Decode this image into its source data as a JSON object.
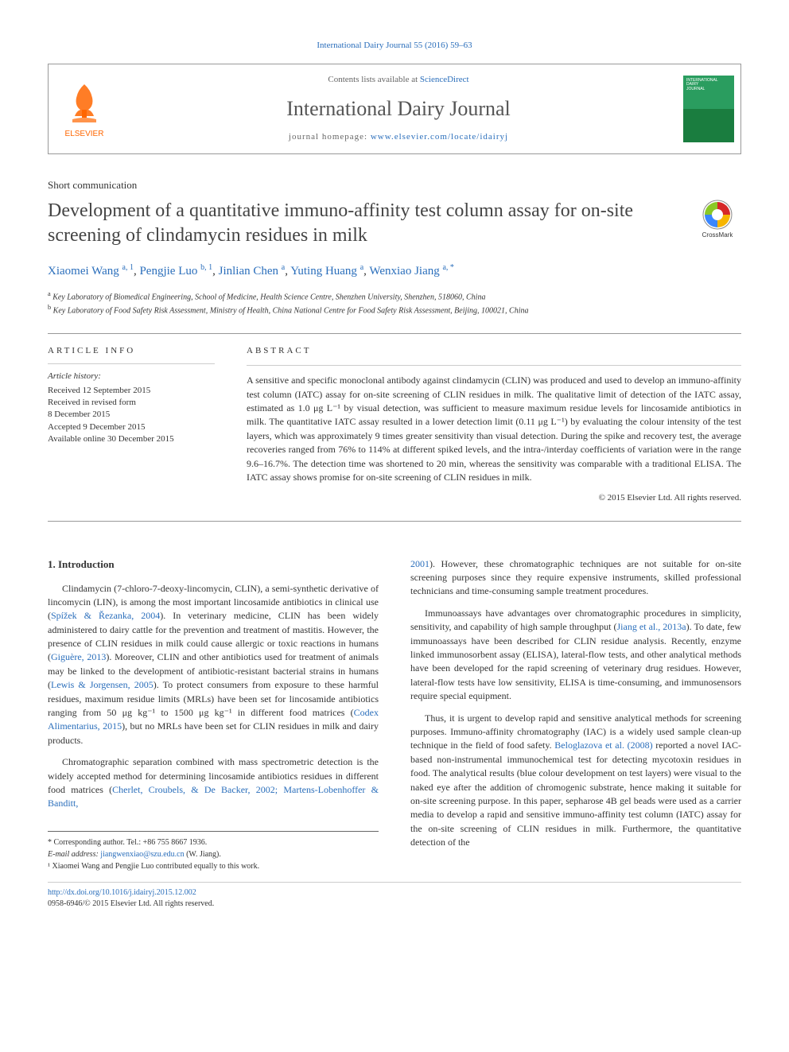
{
  "citation": "International Dairy Journal 55 (2016) 59–63",
  "header": {
    "contents_prefix": "Contents lists available at ",
    "contents_link": "ScienceDirect",
    "journal_title": "International Dairy Journal",
    "homepage_prefix": "journal homepage: ",
    "homepage_url": "www.elsevier.com/locate/idairyj",
    "publisher": "ELSEVIER",
    "cover_text1": "INTERNATIONAL",
    "cover_text2": "DAIRY",
    "cover_text3": "JOURNAL"
  },
  "article_type": "Short communication",
  "title": "Development of a quantitative immuno-affinity test column assay for on-site screening of clindamycin residues in milk",
  "crossmark_label": "CrossMark",
  "authors_html": "Xiaomei Wang",
  "authors": [
    {
      "name": "Xiaomei Wang",
      "aff": "a, 1"
    },
    {
      "name": "Pengjie Luo",
      "aff": "b, 1"
    },
    {
      "name": "Jinlian Chen",
      "aff": "a"
    },
    {
      "name": "Yuting Huang",
      "aff": "a"
    },
    {
      "name": "Wenxiao Jiang",
      "aff": "a, *"
    }
  ],
  "affiliations": {
    "a": "Key Laboratory of Biomedical Engineering, School of Medicine, Health Science Centre, Shenzhen University, Shenzhen, 518060, China",
    "b": "Key Laboratory of Food Safety Risk Assessment, Ministry of Health, China National Centre for Food Safety Risk Assessment, Beijing, 100021, China"
  },
  "article_info_hdr": "ARTICLE INFO",
  "abstract_hdr": "ABSTRACT",
  "history_hdr": "Article history:",
  "history": {
    "received": "Received 12 September 2015",
    "revised1": "Received in revised form",
    "revised2": "8 December 2015",
    "accepted": "Accepted 9 December 2015",
    "online": "Available online 30 December 2015"
  },
  "abstract": "A sensitive and specific monoclonal antibody against clindamycin (CLIN) was produced and used to develop an immuno-affinity test column (IATC) assay for on-site screening of CLIN residues in milk. The qualitative limit of detection of the IATC assay, estimated as 1.0 μg L⁻¹ by visual detection, was sufficient to measure maximum residue levels for lincosamide antibiotics in milk. The quantitative IATC assay resulted in a lower detection limit (0.11 μg L⁻¹) by evaluating the colour intensity of the test layers, which was approximately 9 times greater sensitivity than visual detection. During the spike and recovery test, the average recoveries ranged from 76% to 114% at different spiked levels, and the intra-/interday coefficients of variation were in the range 9.6–16.7%. The detection time was shortened to 20 min, whereas the sensitivity was comparable with a traditional ELISA. The IATC assay shows promise for on-site screening of CLIN residues in milk.",
  "copyright": "© 2015 Elsevier Ltd. All rights reserved.",
  "intro_heading": "1. Introduction",
  "intro_p1_a": "Clindamycin (7-chloro-7-deoxy-lincomycin, CLIN), a semi-synthetic derivative of lincomycin (LIN), is among the most important lincosamide antibiotics in clinical use (",
  "intro_p1_ref1": "Spížek & Řezanka, 2004",
  "intro_p1_b": "). In veterinary medicine, CLIN has been widely administered to dairy cattle for the prevention and treatment of mastitis. However, the presence of CLIN residues in milk could cause allergic or toxic reactions in humans (",
  "intro_p1_ref2": "Giguère, 2013",
  "intro_p1_c": "). Moreover, CLIN and other antibiotics used for treatment of animals may be linked to the development of antibiotic-resistant bacterial strains in humans (",
  "intro_p1_ref3": "Lewis & Jorgensen, 2005",
  "intro_p1_d": "). To protect consumers from exposure to these harmful residues, maximum residue limits (MRLs) have been set for lincosamide antibiotics ranging from 50 μg kg⁻¹ to 1500 μg kg⁻¹ in different food matrices (",
  "intro_p1_ref4": "Codex Alimentarius, 2015",
  "intro_p1_e": "), but no MRLs have been set for CLIN residues in milk and dairy products.",
  "intro_p2_a": "Chromatographic separation combined with mass spectrometric detection is the widely accepted method for determining lincosamide antibiotics residues in different food matrices (",
  "intro_p2_ref1": "Cherlet, Croubels, & De Backer, 2002; Martens-Lobenhoffer & Banditt,",
  "intro_p3_ref1": "2001",
  "intro_p3_a": "). However, these chromatographic techniques are not suitable for on-site screening purposes since they require expensive instruments, skilled professional technicians and time-consuming sample treatment procedures.",
  "intro_p4_a": "Immunoassays have advantages over chromatographic procedures in simplicity, sensitivity, and capability of high sample throughput (",
  "intro_p4_ref1": "Jiang et al., 2013a",
  "intro_p4_b": "). To date, few immunoassays have been described for CLIN residue analysis. Recently, enzyme linked immunosorbent assay (ELISA), lateral-flow tests, and other analytical methods have been developed for the rapid screening of veterinary drug residues. However, lateral-flow tests have low sensitivity, ELISA is time-consuming, and immunosensors require special equipment.",
  "intro_p5_a": "Thus, it is urgent to develop rapid and sensitive analytical methods for screening purposes. Immuno-affinity chromatography (IAC) is a widely used sample clean-up technique in the field of food safety. ",
  "intro_p5_ref1": "Beloglazova et al. (2008)",
  "intro_p5_b": " reported a novel IAC-based non-instrumental immunochemical test for detecting mycotoxin residues in food. The analytical results (blue colour development on test layers) were visual to the naked eye after the addition of chromogenic substrate, hence making it suitable for on-site screening purpose. In this paper, sepharose 4B gel beads were used as a carrier media to develop a rapid and sensitive immuno-affinity test column (IATC) assay for the on-site screening of CLIN residues in milk. Furthermore, the quantitative detection of the",
  "footnotes": {
    "corr": "* Corresponding author. Tel.: +86 755 8667 1936.",
    "email_label": "E-mail address: ",
    "email": "jiangwenxiao@szu.edu.cn",
    "email_suffix": " (W. Jiang).",
    "equal": "¹ Xiaomei Wang and Pengjie Luo contributed equally to this work."
  },
  "doi_url": "http://dx.doi.org/10.1016/j.idairyj.2015.12.002",
  "issn_line": "0958-6946/© 2015 Elsevier Ltd. All rights reserved.",
  "colors": {
    "link": "#2a6ebb",
    "orange": "#ff6600",
    "green": "#2a9d5f"
  }
}
